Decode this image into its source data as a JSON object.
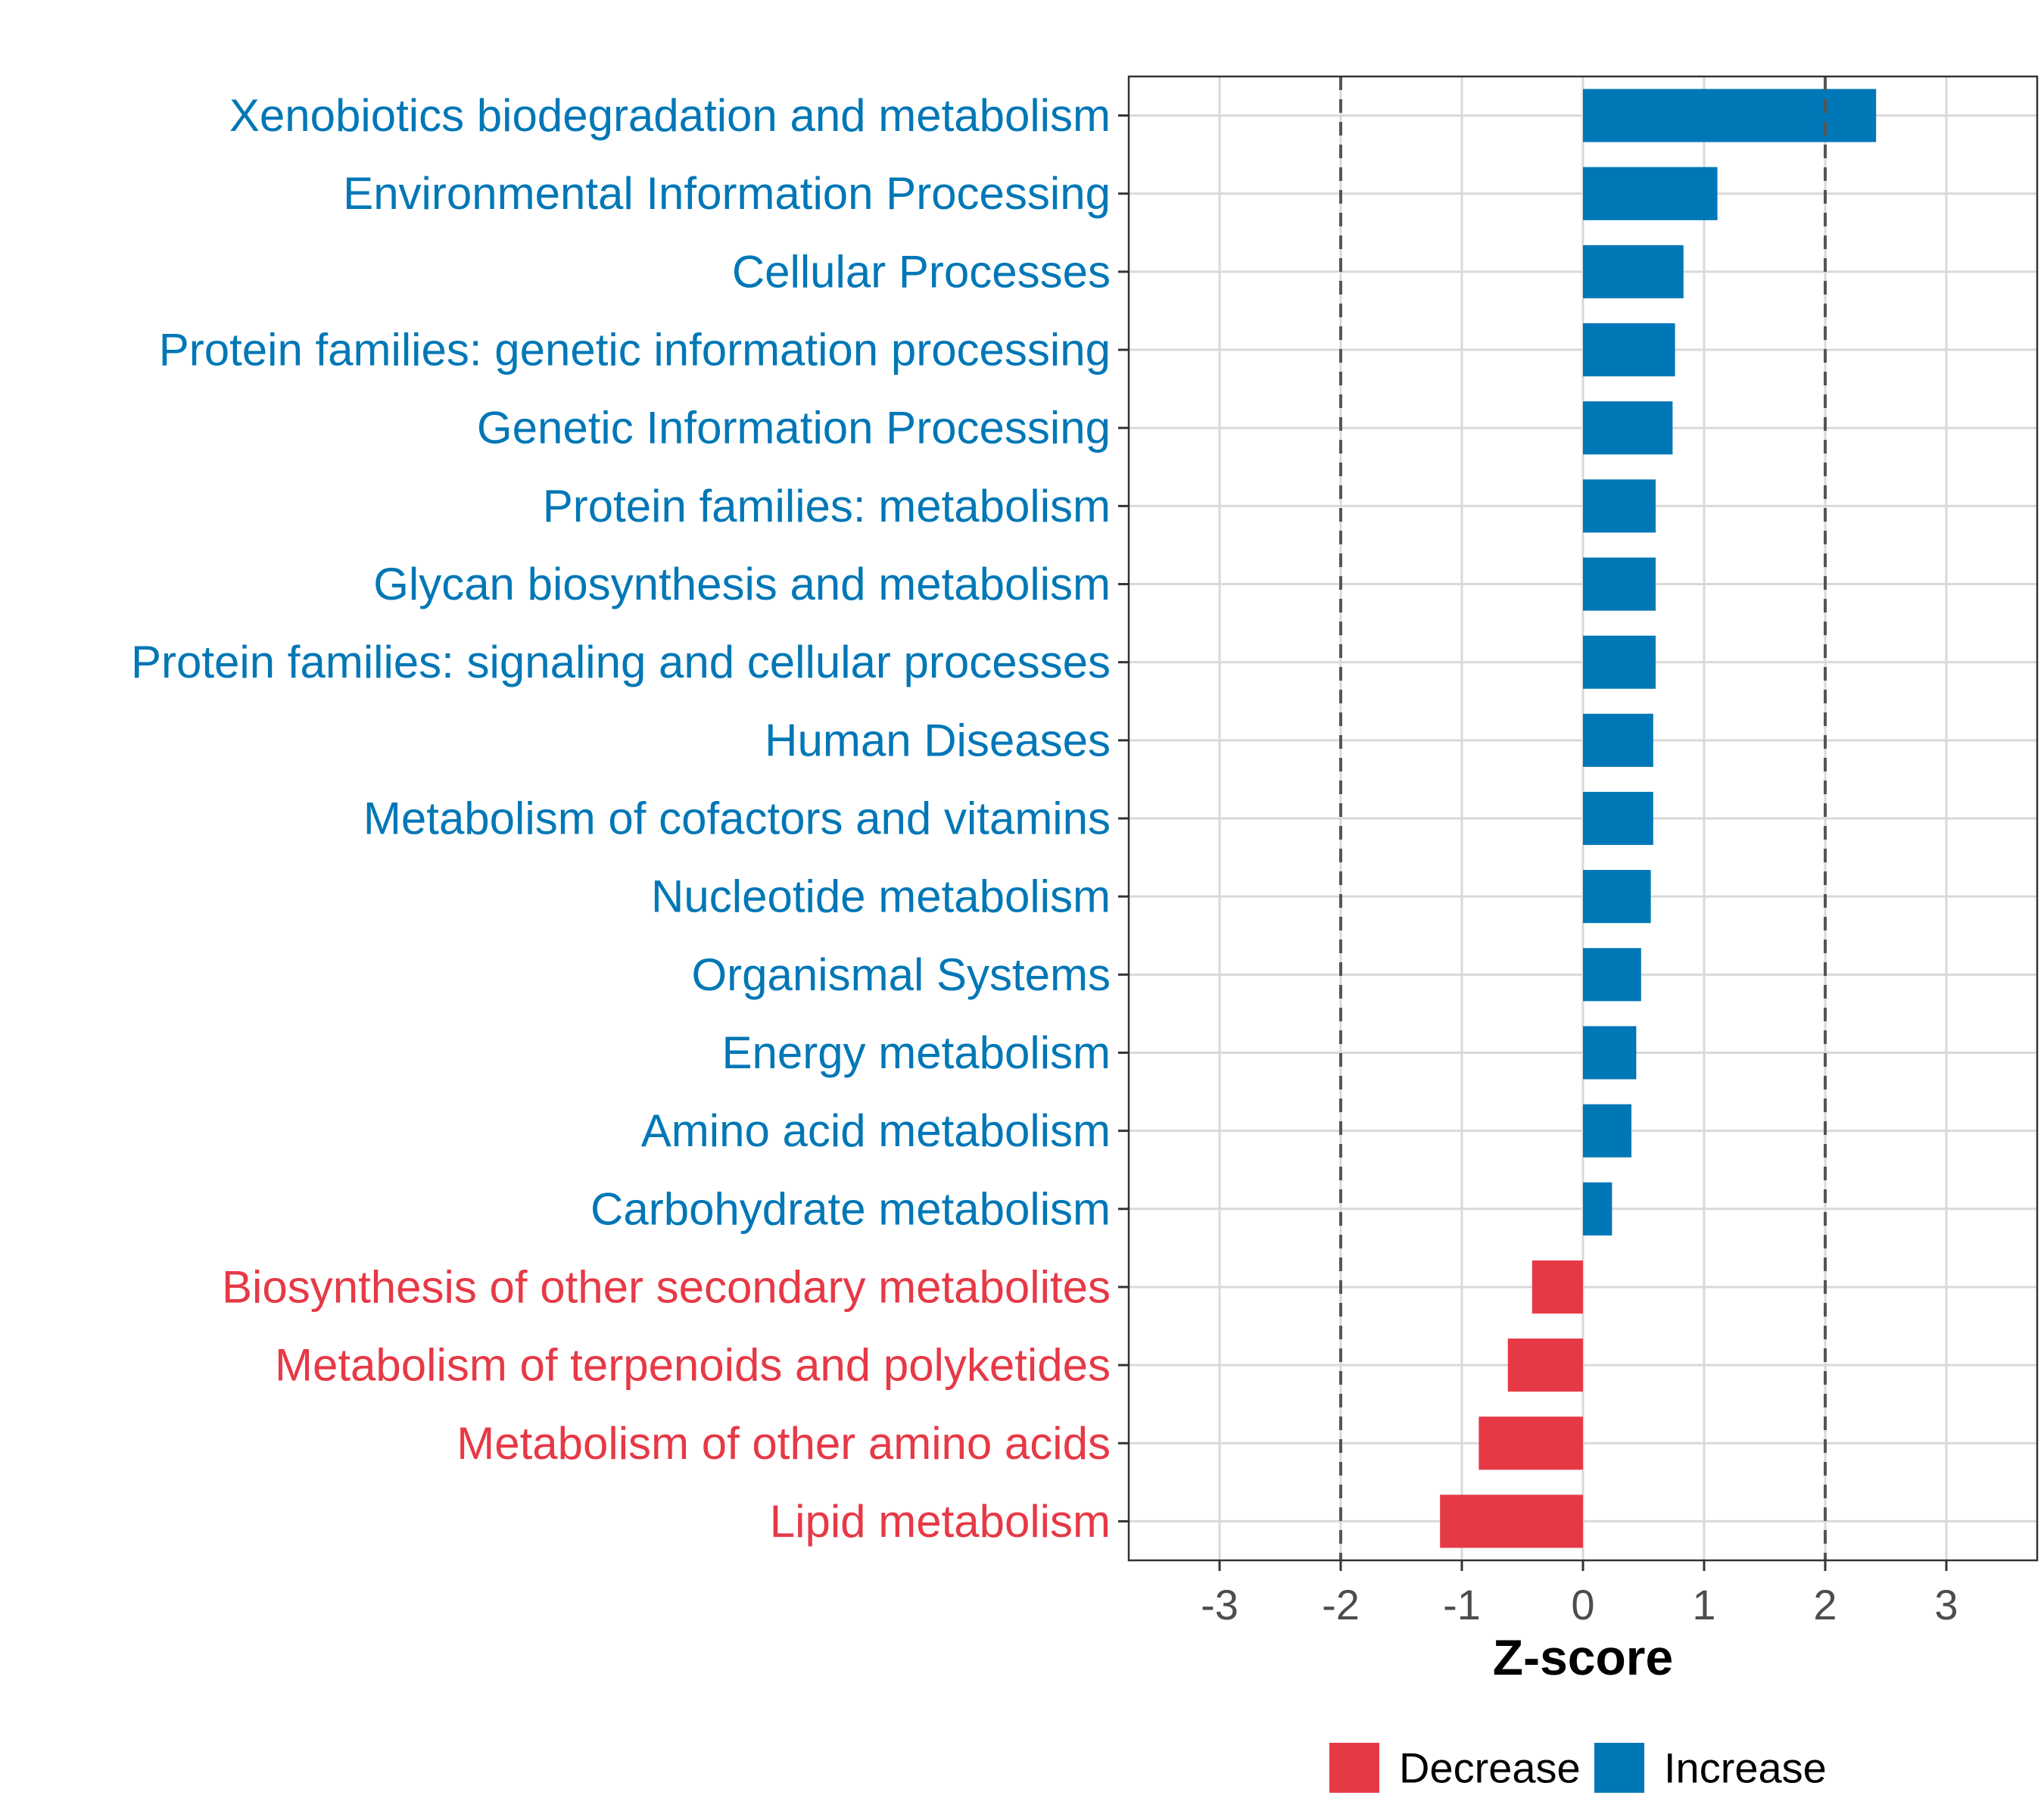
{
  "chart_data": {
    "type": "bar",
    "orientation": "horizontal",
    "title": "",
    "xlabel": "Z-score",
    "ylabel": "",
    "xlim": [
      -3.75,
      3.75
    ],
    "xticks": [
      -3,
      -2,
      -1,
      0,
      1,
      2,
      3
    ],
    "xtick_labels": [
      "-3",
      "-2",
      "-1",
      "0",
      "1",
      "2",
      "3"
    ],
    "reference_lines": [
      -2,
      2
    ],
    "grid": true,
    "categories": [
      "Xenobiotics biodegradation and metabolism",
      "Environmental Information Processing",
      "Cellular Processes",
      "Protein families: genetic information processing",
      "Genetic Information Processing",
      "Protein families: metabolism",
      "Glycan biosynthesis and metabolism",
      "Protein families: signaling and cellular processes",
      "Human Diseases",
      "Metabolism of cofactors and vitamins",
      "Nucleotide metabolism",
      "Organismal Systems",
      "Energy metabolism",
      "Amino acid metabolism",
      "Carbohydrate metabolism",
      "Biosynthesis of other secondary metabolites",
      "Metabolism of terpenoids and polyketides",
      "Metabolism of other amino acids",
      "Lipid metabolism"
    ],
    "values": [
      2.42,
      1.11,
      0.83,
      0.76,
      0.74,
      0.6,
      0.6,
      0.6,
      0.58,
      0.58,
      0.56,
      0.48,
      0.44,
      0.4,
      0.24,
      -0.42,
      -0.62,
      -0.86,
      -1.18
    ],
    "groups": [
      "Increase",
      "Increase",
      "Increase",
      "Increase",
      "Increase",
      "Increase",
      "Increase",
      "Increase",
      "Increase",
      "Increase",
      "Increase",
      "Increase",
      "Increase",
      "Increase",
      "Increase",
      "Decrease",
      "Decrease",
      "Decrease",
      "Decrease"
    ],
    "legend": {
      "position": "bottom",
      "entries": [
        {
          "label": "Decrease",
          "color": "#e63946"
        },
        {
          "label": "Increase",
          "color": "#0077b6"
        }
      ]
    },
    "colors": {
      "Increase": "#0077b6",
      "Decrease": "#e63946"
    }
  }
}
